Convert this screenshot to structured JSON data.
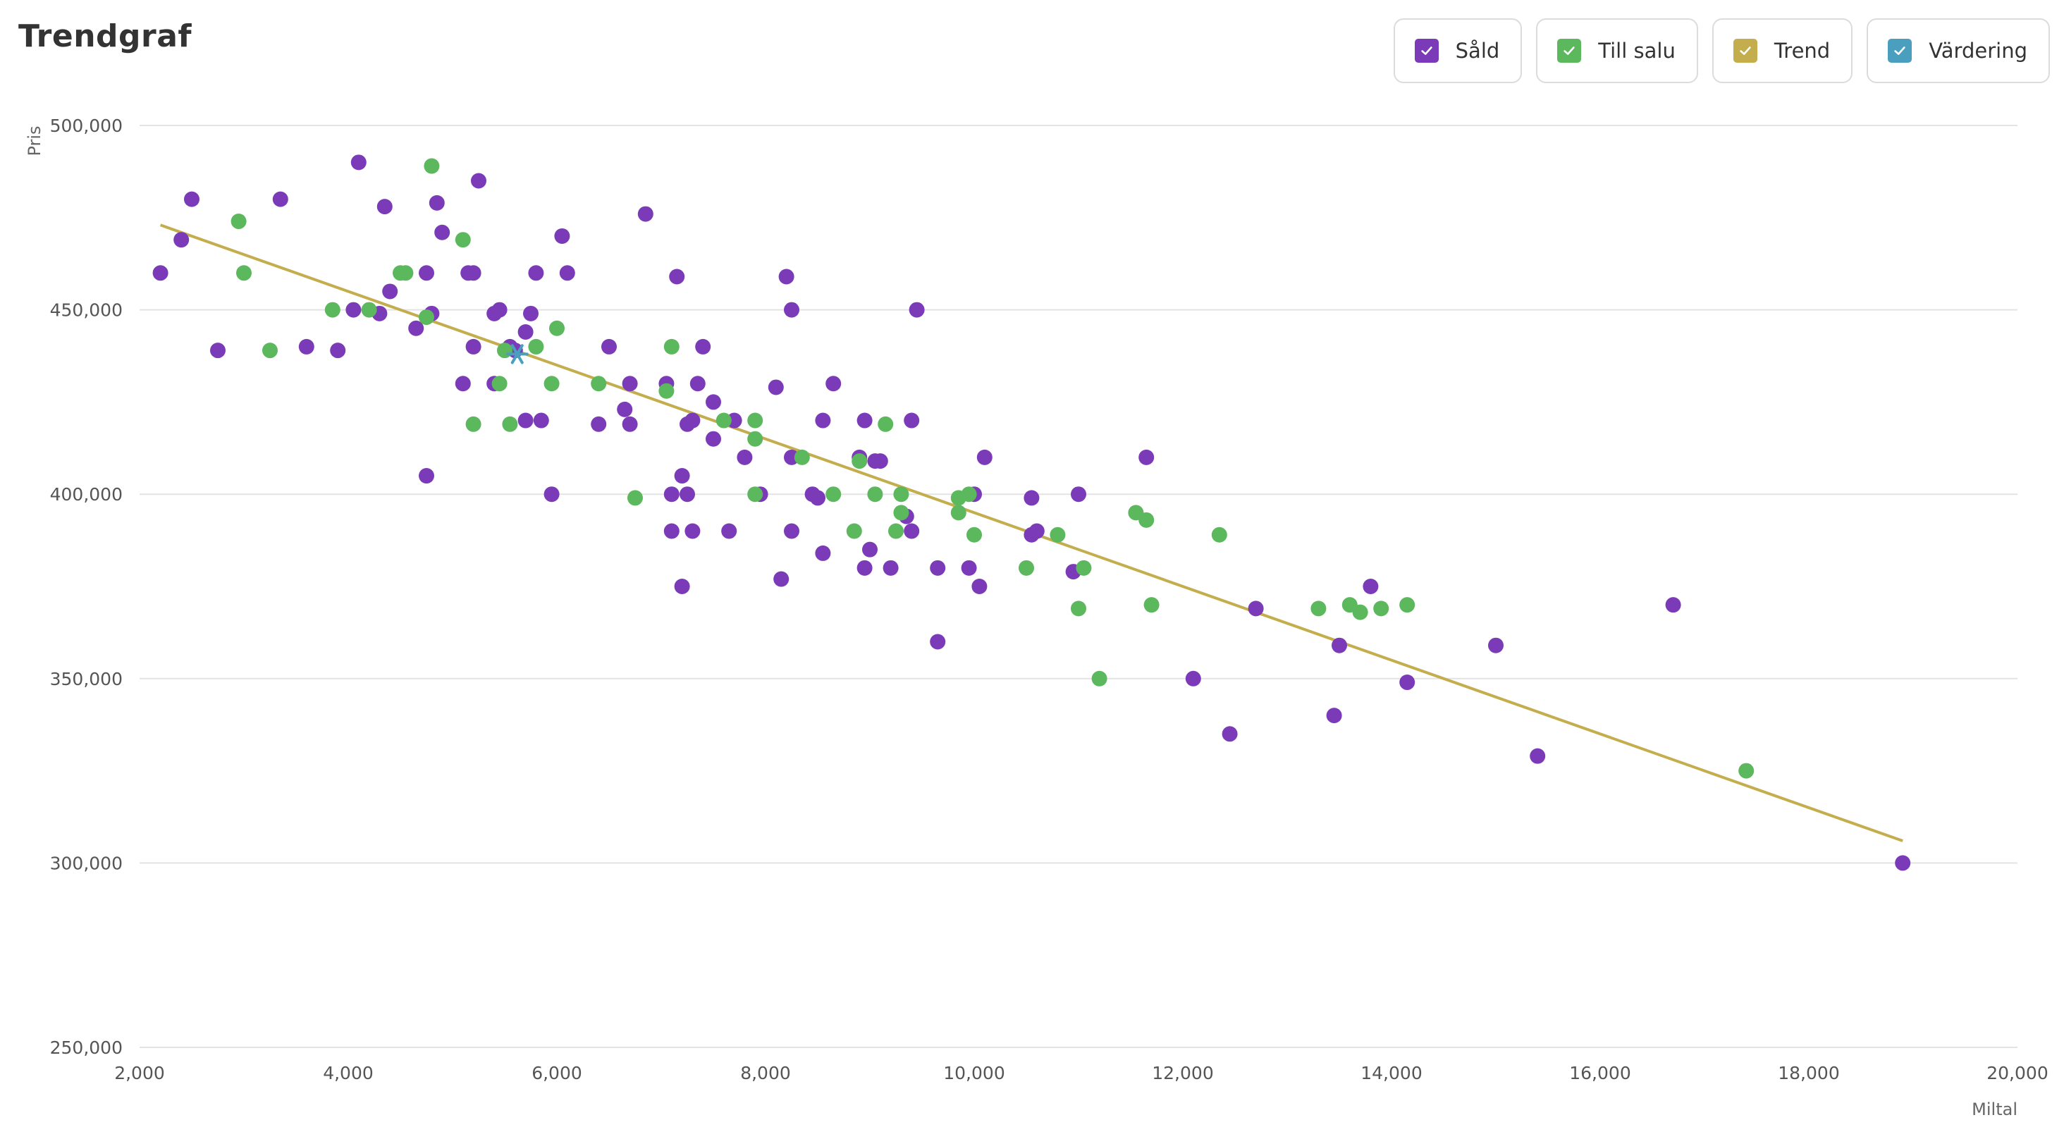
{
  "title": "Trendgraf",
  "legend": [
    {
      "label": "Såld",
      "color": "#7b3bb8",
      "checked": true
    },
    {
      "label": "Till salu",
      "color": "#5cb85c",
      "checked": true
    },
    {
      "label": "Trend",
      "color": "#c4ad4c",
      "checked": true
    },
    {
      "label": "Värdering",
      "color": "#4a9fbf",
      "checked": true
    }
  ],
  "chart_data": {
    "type": "scatter",
    "title": "Trendgraf",
    "xlabel": "Miltal",
    "ylabel": "Pris",
    "xlim": [
      2000,
      20000
    ],
    "ylim": [
      250000,
      500000
    ],
    "xticks": [
      2000,
      4000,
      6000,
      8000,
      10000,
      12000,
      14000,
      16000,
      18000,
      20000
    ],
    "yticks": [
      250000,
      300000,
      350000,
      400000,
      450000,
      500000
    ],
    "grid": "horizontal",
    "legend_position": "top-right",
    "series": [
      {
        "name": "Såld",
        "color": "#7b3bb8",
        "points": [
          [
            2200,
            460000
          ],
          [
            2400,
            469000
          ],
          [
            2500,
            480000
          ],
          [
            2750,
            439000
          ],
          [
            3350,
            480000
          ],
          [
            3600,
            440000
          ],
          [
            3900,
            439000
          ],
          [
            4100,
            490000
          ],
          [
            4050,
            450000
          ],
          [
            4300,
            449000
          ],
          [
            4350,
            478000
          ],
          [
            4400,
            455000
          ],
          [
            4650,
            445000
          ],
          [
            4750,
            460000
          ],
          [
            4800,
            449000
          ],
          [
            4750,
            405000
          ],
          [
            4850,
            479000
          ],
          [
            4900,
            471000
          ],
          [
            5100,
            430000
          ],
          [
            5150,
            460000
          ],
          [
            5200,
            460000
          ],
          [
            5200,
            440000
          ],
          [
            5250,
            485000
          ],
          [
            5400,
            449000
          ],
          [
            5450,
            450000
          ],
          [
            5400,
            430000
          ],
          [
            5550,
            440000
          ],
          [
            5600,
            439000
          ],
          [
            5700,
            420000
          ],
          [
            5700,
            444000
          ],
          [
            5750,
            449000
          ],
          [
            5800,
            460000
          ],
          [
            5850,
            420000
          ],
          [
            5950,
            400000
          ],
          [
            6050,
            470000
          ],
          [
            6100,
            460000
          ],
          [
            6400,
            419000
          ],
          [
            6500,
            440000
          ],
          [
            6650,
            423000
          ],
          [
            6700,
            419000
          ],
          [
            6700,
            430000
          ],
          [
            6850,
            476000
          ],
          [
            7050,
            430000
          ],
          [
            7100,
            400000
          ],
          [
            7100,
            390000
          ],
          [
            7150,
            459000
          ],
          [
            7200,
            405000
          ],
          [
            7200,
            375000
          ],
          [
            7250,
            400000
          ],
          [
            7250,
            419000
          ],
          [
            7300,
            420000
          ],
          [
            7300,
            390000
          ],
          [
            7350,
            430000
          ],
          [
            7400,
            440000
          ],
          [
            7500,
            425000
          ],
          [
            7500,
            415000
          ],
          [
            7650,
            390000
          ],
          [
            7700,
            420000
          ],
          [
            7800,
            410000
          ],
          [
            7950,
            400000
          ],
          [
            8100,
            429000
          ],
          [
            8150,
            377000
          ],
          [
            8200,
            459000
          ],
          [
            8250,
            450000
          ],
          [
            8250,
            390000
          ],
          [
            8250,
            410000
          ],
          [
            8450,
            400000
          ],
          [
            8500,
            399000
          ],
          [
            8550,
            420000
          ],
          [
            8550,
            384000
          ],
          [
            8650,
            430000
          ],
          [
            8900,
            410000
          ],
          [
            8950,
            420000
          ],
          [
            8950,
            380000
          ],
          [
            9000,
            385000
          ],
          [
            9050,
            409000
          ],
          [
            9100,
            409000
          ],
          [
            9200,
            380000
          ],
          [
            9350,
            394000
          ],
          [
            9400,
            420000
          ],
          [
            9400,
            390000
          ],
          [
            9450,
            450000
          ],
          [
            9650,
            380000
          ],
          [
            9650,
            360000
          ],
          [
            9950,
            380000
          ],
          [
            10000,
            400000
          ],
          [
            10050,
            375000
          ],
          [
            10100,
            410000
          ],
          [
            10550,
            389000
          ],
          [
            10550,
            399000
          ],
          [
            10600,
            390000
          ],
          [
            10950,
            379000
          ],
          [
            11000,
            400000
          ],
          [
            11650,
            410000
          ],
          [
            12100,
            350000
          ],
          [
            12450,
            335000
          ],
          [
            12700,
            369000
          ],
          [
            13450,
            340000
          ],
          [
            13500,
            359000
          ],
          [
            13800,
            375000
          ],
          [
            14150,
            349000
          ],
          [
            15000,
            359000
          ],
          [
            15400,
            329000
          ],
          [
            16700,
            370000
          ],
          [
            18900,
            300000
          ]
        ]
      },
      {
        "name": "Till salu",
        "color": "#5cb85c",
        "points": [
          [
            2950,
            474000
          ],
          [
            3000,
            460000
          ],
          [
            3250,
            439000
          ],
          [
            3850,
            450000
          ],
          [
            4200,
            450000
          ],
          [
            4500,
            460000
          ],
          [
            4550,
            460000
          ],
          [
            4750,
            448000
          ],
          [
            4800,
            489000
          ],
          [
            5100,
            469000
          ],
          [
            5200,
            419000
          ],
          [
            5450,
            430000
          ],
          [
            5500,
            439000
          ],
          [
            5550,
            419000
          ],
          [
            5800,
            440000
          ],
          [
            5950,
            430000
          ],
          [
            6000,
            445000
          ],
          [
            6400,
            430000
          ],
          [
            6750,
            399000
          ],
          [
            7050,
            428000
          ],
          [
            7100,
            440000
          ],
          [
            7600,
            420000
          ],
          [
            7900,
            415000
          ],
          [
            7900,
            400000
          ],
          [
            7900,
            420000
          ],
          [
            8350,
            410000
          ],
          [
            8650,
            400000
          ],
          [
            8850,
            390000
          ],
          [
            8900,
            409000
          ],
          [
            9050,
            400000
          ],
          [
            9150,
            419000
          ],
          [
            9250,
            390000
          ],
          [
            9300,
            400000
          ],
          [
            9300,
            395000
          ],
          [
            9850,
            399000
          ],
          [
            9850,
            395000
          ],
          [
            9950,
            400000
          ],
          [
            10000,
            389000
          ],
          [
            10500,
            380000
          ],
          [
            10800,
            389000
          ],
          [
            11000,
            369000
          ],
          [
            11050,
            380000
          ],
          [
            11200,
            350000
          ],
          [
            11550,
            395000
          ],
          [
            11650,
            393000
          ],
          [
            11700,
            370000
          ],
          [
            12350,
            389000
          ],
          [
            13300,
            369000
          ],
          [
            13600,
            370000
          ],
          [
            13700,
            368000
          ],
          [
            13900,
            369000
          ],
          [
            14150,
            370000
          ],
          [
            17400,
            325000
          ]
        ]
      },
      {
        "name": "Trend",
        "color": "#c4ad4c",
        "line": [
          [
            2200,
            473000
          ],
          [
            18900,
            306000
          ]
        ]
      },
      {
        "name": "Värdering",
        "color": "#4a9fbf",
        "marker": "star",
        "points": [
          [
            5620,
            438000
          ]
        ]
      }
    ]
  }
}
